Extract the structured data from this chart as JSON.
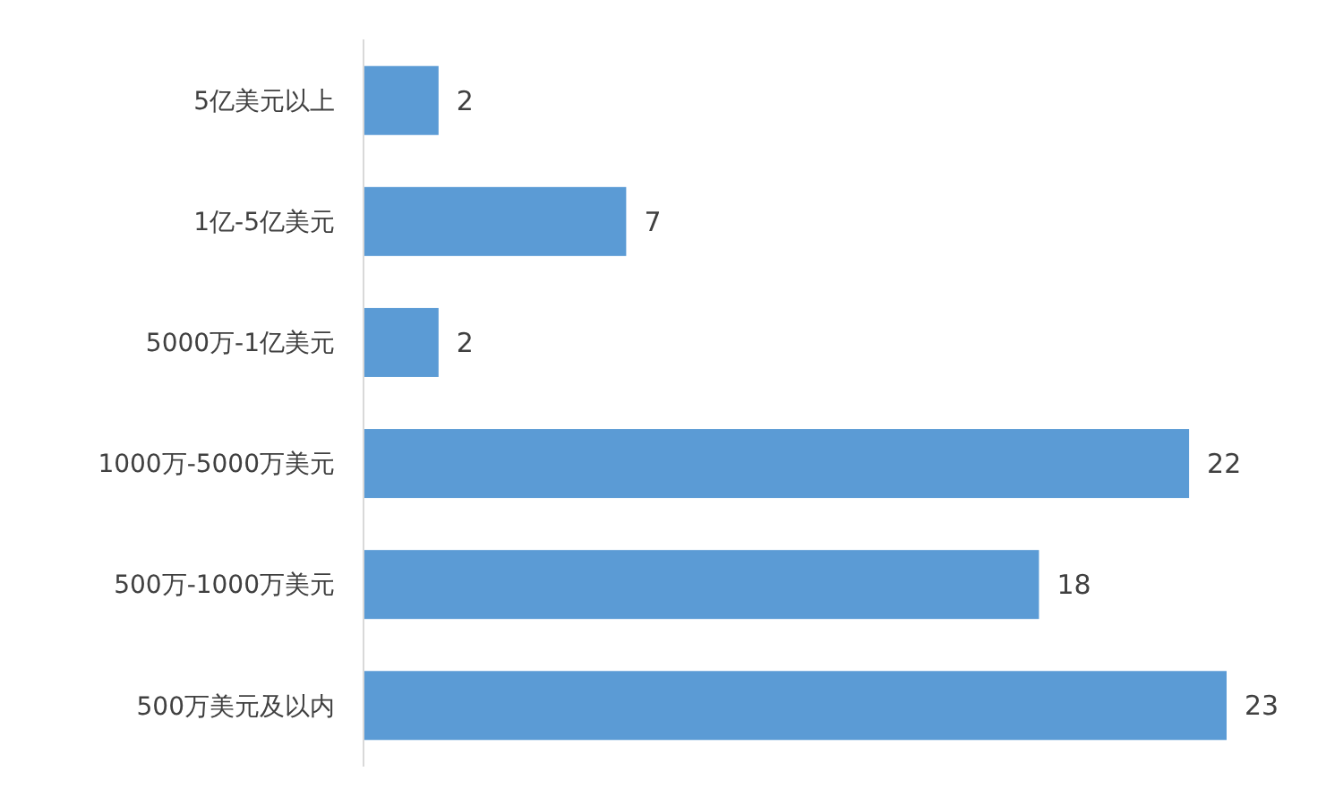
{
  "chart_data": {
    "type": "bar",
    "orientation": "horizontal",
    "categories": [
      "5亿美元以上",
      "1亿-5亿美元",
      "5000万-1亿美元",
      "1000万-5000万美元",
      "500万-1000万美元",
      "500万美元及以内"
    ],
    "values": [
      2,
      7,
      2,
      22,
      18,
      23
    ],
    "color": "#5b9bd5",
    "data_labels": true,
    "xlim": [
      0,
      23
    ],
    "tick_labels": "y"
  }
}
